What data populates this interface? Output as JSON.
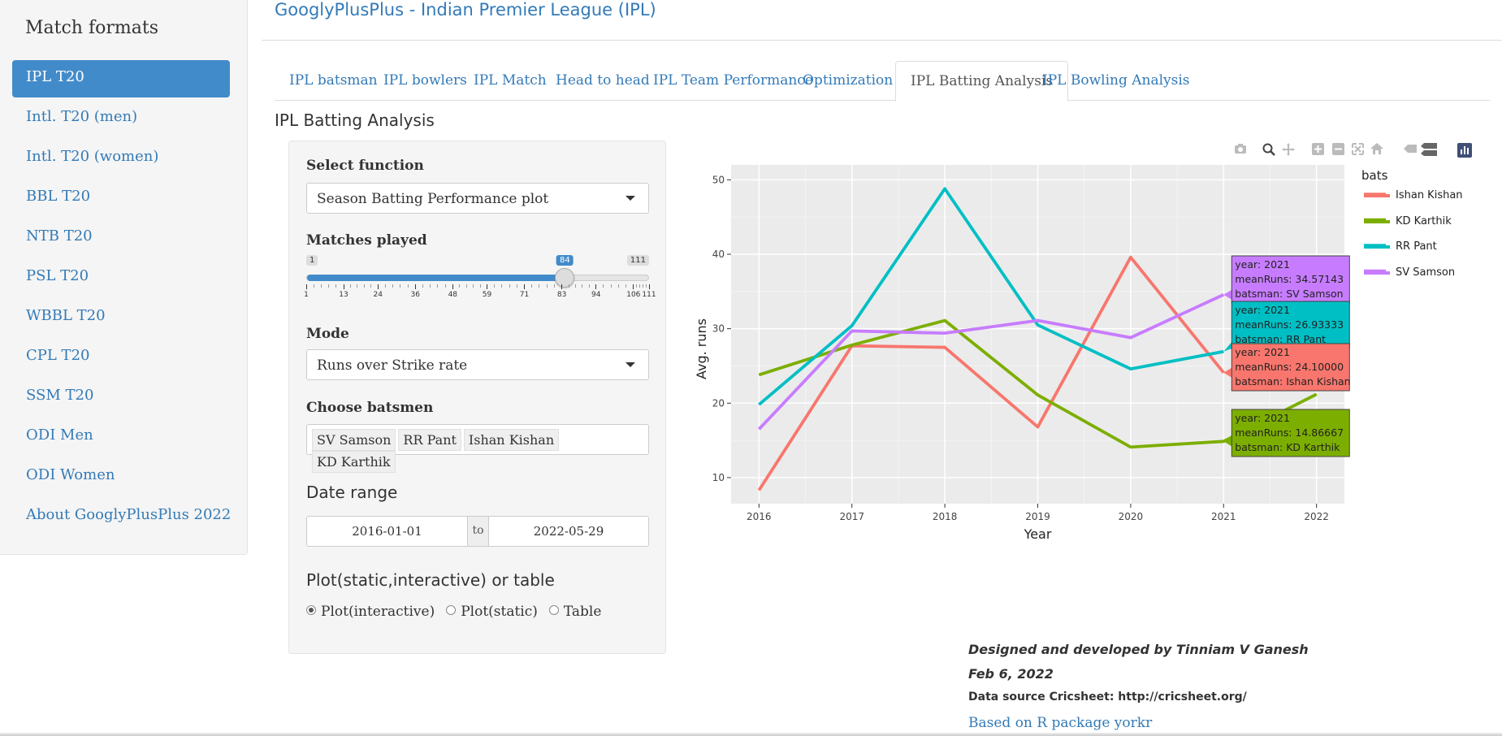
{
  "sidebar": {
    "title": "Match formats",
    "items": [
      {
        "label": "IPL T20",
        "active": true
      },
      {
        "label": "Intl. T20 (men)"
      },
      {
        "label": "Intl. T20 (women)"
      },
      {
        "label": "BBL T20"
      },
      {
        "label": "NTB T20"
      },
      {
        "label": "PSL T20"
      },
      {
        "label": "WBBL T20"
      },
      {
        "label": "CPL T20"
      },
      {
        "label": "SSM T20"
      },
      {
        "label": "ODI Men"
      },
      {
        "label": "ODI Women"
      },
      {
        "label": "About GooglyPlusPlus 2022"
      }
    ]
  },
  "header": {
    "title": "GooglyPlusPlus - Indian Premier League (IPL)"
  },
  "tabs": [
    {
      "label": "IPL batsman"
    },
    {
      "label": "IPL bowlers"
    },
    {
      "label": "IPL Match"
    },
    {
      "label": "Head to head"
    },
    {
      "label": "IPL Team Performance"
    },
    {
      "label": "Optimization"
    },
    {
      "label": "IPL Batting Analysis",
      "active": true
    },
    {
      "label": "IPL Bowling Analysis"
    }
  ],
  "section_title": "IPL Batting Analysis",
  "controls": {
    "function_label": "Select function",
    "function_value": "Season Batting Performance plot",
    "matches_label": "Matches played",
    "slider": {
      "min": 1,
      "max": 111,
      "value": 84,
      "min_label": "1",
      "max_label": "111",
      "value_label": "84",
      "ticks": [
        {
          "value": 1,
          "label": "1"
        },
        {
          "value": 13,
          "label": "13"
        },
        {
          "value": 24,
          "label": "24"
        },
        {
          "value": 36,
          "label": "36"
        },
        {
          "value": 48,
          "label": "48"
        },
        {
          "value": 59,
          "label": "59"
        },
        {
          "value": 71,
          "label": "71"
        },
        {
          "value": 83,
          "label": "83"
        },
        {
          "value": 94,
          "label": "94"
        },
        {
          "value": 106,
          "label": "106"
        },
        {
          "value": 111,
          "label": "111"
        }
      ]
    },
    "mode_label": "Mode",
    "mode_value": "Runs over Strike rate",
    "batsmen_label": "Choose batsmen",
    "batsmen": [
      "SV Samson",
      "RR Pant",
      "Ishan Kishan",
      "KD Karthik"
    ],
    "date_label": "Date range",
    "date_from": "2016-01-01",
    "date_sep": "to",
    "date_to": "2022-05-29",
    "output_label": "Plot(static,interactive) or table",
    "output_options": [
      {
        "label": "Plot(interactive)",
        "selected": true
      },
      {
        "label": "Plot(static)"
      },
      {
        "label": "Table"
      }
    ]
  },
  "modebar_icons": [
    "camera-icon",
    "zoom-icon",
    "pan-icon",
    "zoom-in-icon",
    "zoom-out-icon",
    "autoscale-icon",
    "reset-axes-icon",
    "spike-lines-icon",
    "hover-closest-icon",
    "hover-compare-icon",
    "plotly-logo-icon"
  ],
  "chart_data": {
    "type": "line",
    "xlabel": "Year",
    "ylabel": "Avg. runs",
    "xlim": [
      2015.7,
      2022.3
    ],
    "ylim": [
      6.5,
      52
    ],
    "x_ticks": [
      2016,
      2017,
      2018,
      2019,
      2020,
      2021,
      2022
    ],
    "y_ticks": [
      10,
      20,
      30,
      40,
      50
    ],
    "legend_title": "batsman",
    "legend_position": "right",
    "x": [
      2016,
      2017,
      2018,
      2019,
      2020,
      2021,
      2022
    ],
    "series": [
      {
        "name": "Ishan Kishan",
        "color": "#F8766D",
        "values": [
          8.3,
          27.7,
          27.5,
          16.8,
          39.6,
          24.1,
          null
        ]
      },
      {
        "name": "KD Karthik",
        "color": "#7CAE00",
        "values": [
          23.8,
          27.8,
          31.1,
          21.1,
          14.1,
          14.86667,
          21.2
        ]
      },
      {
        "name": "RR Pant",
        "color": "#00BFC4",
        "values": [
          19.8,
          30.4,
          48.8,
          30.5,
          24.6,
          26.93333,
          null
        ]
      },
      {
        "name": "SV Samson",
        "color": "#C77CFF",
        "values": [
          16.5,
          29.7,
          29.4,
          31.1,
          28.8,
          34.57143,
          null
        ]
      }
    ],
    "hover_labels": [
      {
        "series": 3,
        "lines": [
          "year: 2021",
          "meanRuns: 34.57143",
          "batsman: SV Samson"
        ]
      },
      {
        "series": 2,
        "lines": [
          "year: 2021",
          "meanRuns: 26.93333",
          "batsman: RR Pant"
        ]
      },
      {
        "series": 0,
        "lines": [
          "year: 2021",
          "meanRuns: 24.10000",
          "batsman: Ishan Kishan"
        ]
      },
      {
        "series": 1,
        "lines": [
          "year: 2021",
          "meanRuns: 14.86667",
          "batsman: KD Karthik"
        ]
      }
    ]
  },
  "footer": {
    "designed": "Designed and developed by Tinniam V Ganesh",
    "date": "Feb 6, 2022",
    "source": "Data source Cricsheet: http://cricsheet.org/",
    "yorkr": "Based on R package yorkr"
  }
}
